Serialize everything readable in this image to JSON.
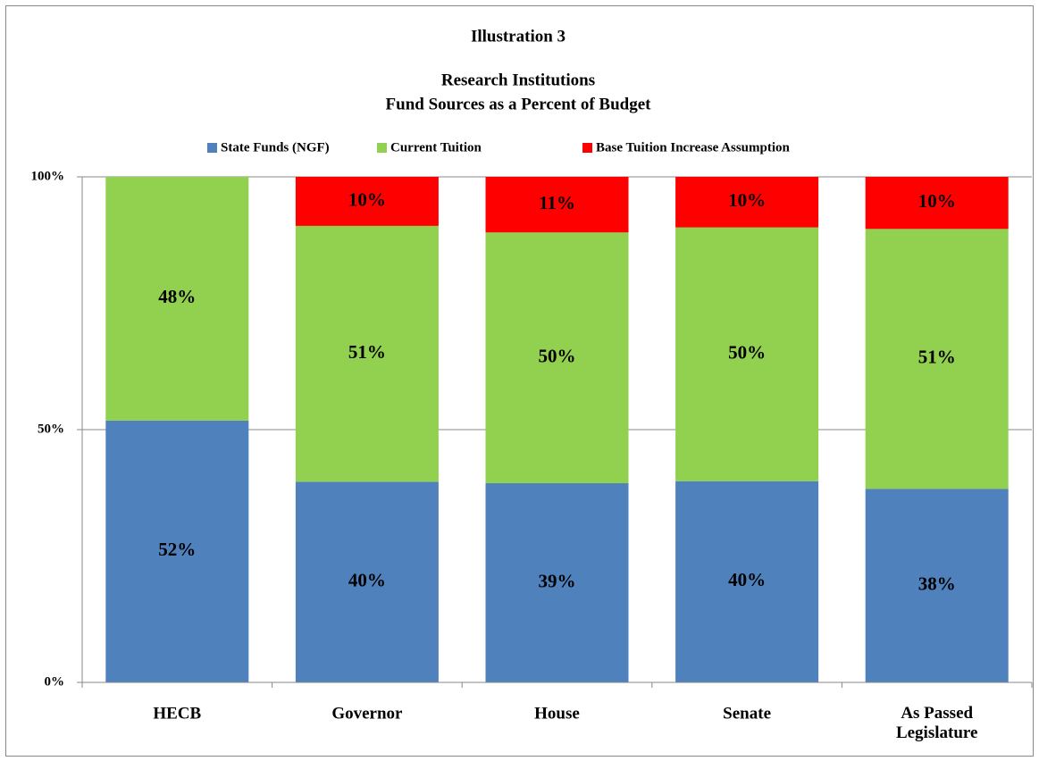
{
  "chart_data": {
    "type": "bar",
    "stacked": true,
    "title": "Illustration 3",
    "subtitle": [
      "Research Institutions",
      "Fund Sources as a Percent of Budget"
    ],
    "categories": [
      "HECB",
      "Governor",
      "House",
      "Senate",
      "As Passed\nLegislature"
    ],
    "series": [
      {
        "name": "State Funds (NGF)",
        "color": "#4f81bd",
        "values": [
          51.8,
          39.7,
          39.4,
          39.8,
          38.3
        ],
        "value_labels": [
          "52%",
          "40%",
          "39%",
          "40%",
          "38%"
        ]
      },
      {
        "name": "Current Tuition",
        "color": "#92d050",
        "values": [
          48.2,
          50.6,
          49.6,
          50.2,
          51.4
        ],
        "value_labels": [
          "48%",
          "51%",
          "50%",
          "50%",
          "51%"
        ]
      },
      {
        "name": "Base Tuition Increase Assumption",
        "color": "#ff0000",
        "values": [
          0,
          9.7,
          11.0,
          10.0,
          10.3
        ],
        "value_labels": [
          null,
          "10%",
          "11%",
          "10%",
          "10%"
        ]
      }
    ],
    "ylim": [
      0,
      100
    ],
    "yticks": [
      {
        "value": 0,
        "label": "0%"
      },
      {
        "value": 50,
        "label": "50%"
      },
      {
        "value": 100,
        "label": "100%"
      }
    ],
    "grid": true,
    "legend": "top"
  }
}
